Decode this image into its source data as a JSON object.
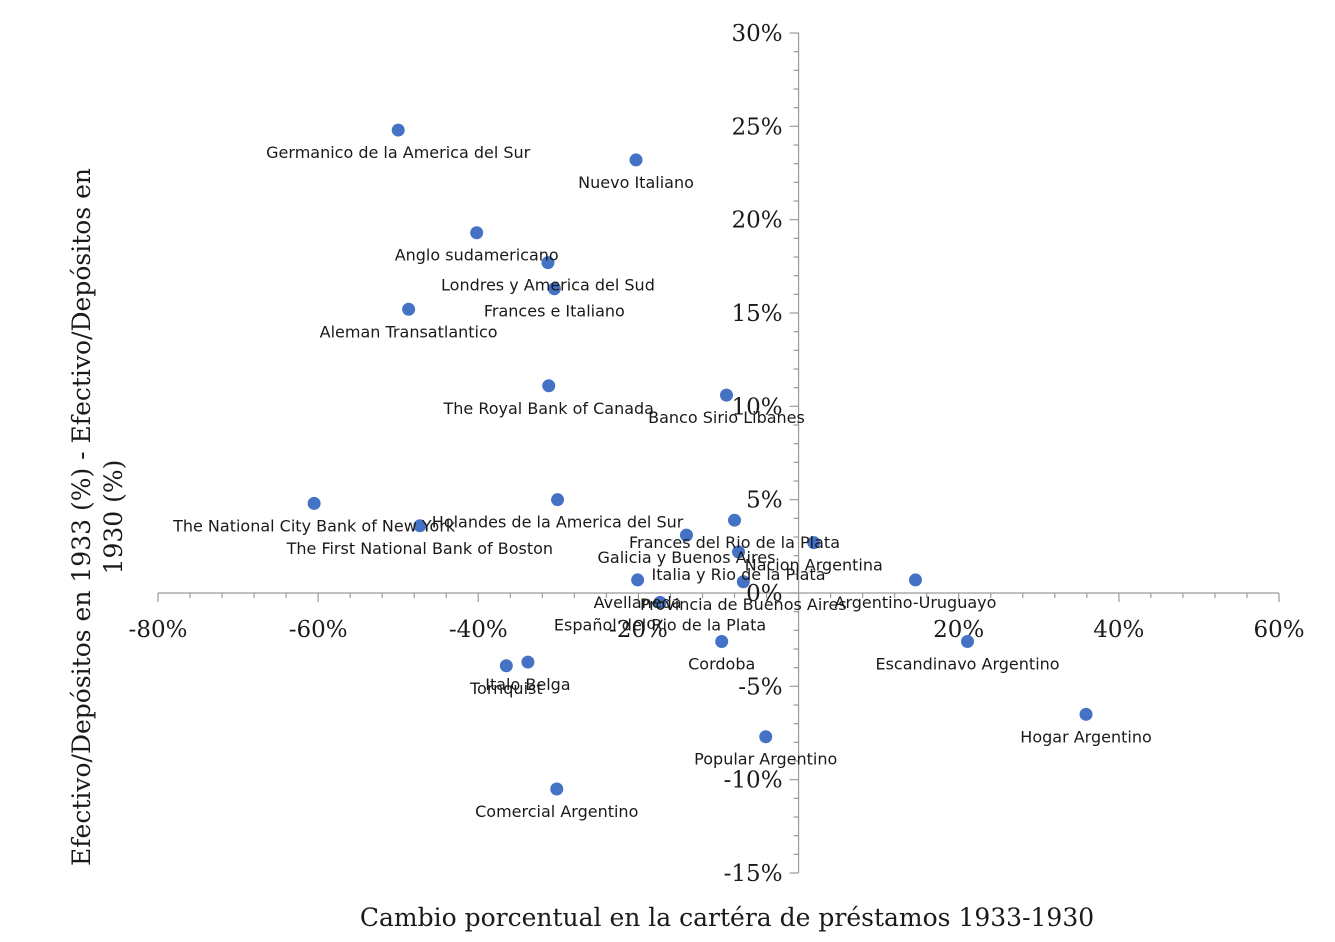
{
  "chart_data": {
    "type": "scatter",
    "title": "",
    "xlabel": "Cambio porcentual en la cartéra de préstamos 1933-1930",
    "ylabel_lines": [
      "Efectivo/Depósitos en 1933 (%) - Efectivo/Depósitos en",
      "1930 (%)"
    ],
    "xlim": [
      -80,
      60
    ],
    "ylim": [
      -15,
      30
    ],
    "x_ticks": [
      -80,
      -60,
      -40,
      -20,
      0,
      20,
      40,
      60
    ],
    "x_tick_labels": [
      "-80%",
      "-60%",
      "-40%",
      "-20%",
      "0%",
      "20%",
      "40%",
      "60%"
    ],
    "y_ticks": [
      30,
      25,
      20,
      15,
      10,
      5,
      -5,
      -10,
      -15
    ],
    "y_tick_labels": [
      "30%",
      "25%",
      "20%",
      "15%",
      "10%",
      "5%",
      "-5%",
      "-10%",
      "-15%"
    ],
    "origin_label": "0%",
    "grid": false,
    "point_color": "#4472c4",
    "points": [
      {
        "label": "Germanico de la America del Sur",
        "x": -50.0,
        "y": 24.8
      },
      {
        "label": "Nuevo Italiano",
        "x": -20.3,
        "y": 23.2
      },
      {
        "label": "Anglo sudamericano",
        "x": -40.2,
        "y": 19.3
      },
      {
        "label": "Londres y America del Sud",
        "x": -31.3,
        "y": 17.7
      },
      {
        "label": "Frances e Italiano",
        "x": -30.5,
        "y": 16.3
      },
      {
        "label": "Aleman Transatlantico",
        "x": -48.7,
        "y": 15.2
      },
      {
        "label": "The Royal Bank of Canada",
        "x": -31.2,
        "y": 11.1
      },
      {
        "label": "Banco Sirio Libanes",
        "x": -9.0,
        "y": 10.6
      },
      {
        "label": "The National City Bank of New York",
        "x": -60.5,
        "y": 4.8
      },
      {
        "label": "Holandes de la America del Sur",
        "x": -30.1,
        "y": 5.0
      },
      {
        "label": "The First National Bank of Boston",
        "x": -47.3,
        "y": 3.6
      },
      {
        "label": "Galicia y Buenos Aires",
        "x": -14.0,
        "y": 3.1
      },
      {
        "label": "Frances del Rio de la Plata",
        "x": -8.0,
        "y": 3.9
      },
      {
        "label": "Nacion Argentina",
        "x": 1.9,
        "y": 2.7
      },
      {
        "label": "Italia y Rio de la Plata",
        "x": -7.5,
        "y": 2.2
      },
      {
        "label": "Argentino-Uruguayo",
        "x": 14.6,
        "y": 0.7
      },
      {
        "label": "Avellaneda",
        "x": -20.1,
        "y": 0.7
      },
      {
        "label": "Provincia de Buenos Aires",
        "x": -6.9,
        "y": 0.6
      },
      {
        "label": "Español del Rio de la Plata",
        "x": -17.3,
        "y": -0.5
      },
      {
        "label": "Cordoba",
        "x": -9.6,
        "y": -2.6
      },
      {
        "label": "Escandinavo Argentino",
        "x": 21.1,
        "y": -2.6
      },
      {
        "label": "Italo Belga",
        "x": -33.8,
        "y": -3.7
      },
      {
        "label": "Tornquist",
        "x": -36.5,
        "y": -3.9
      },
      {
        "label": "Hogar Argentino",
        "x": 35.9,
        "y": -6.5
      },
      {
        "label": "Popular Argentino",
        "x": -4.1,
        "y": -7.7
      },
      {
        "label": "Comercial Argentino",
        "x": -30.2,
        "y": -10.5
      }
    ]
  }
}
